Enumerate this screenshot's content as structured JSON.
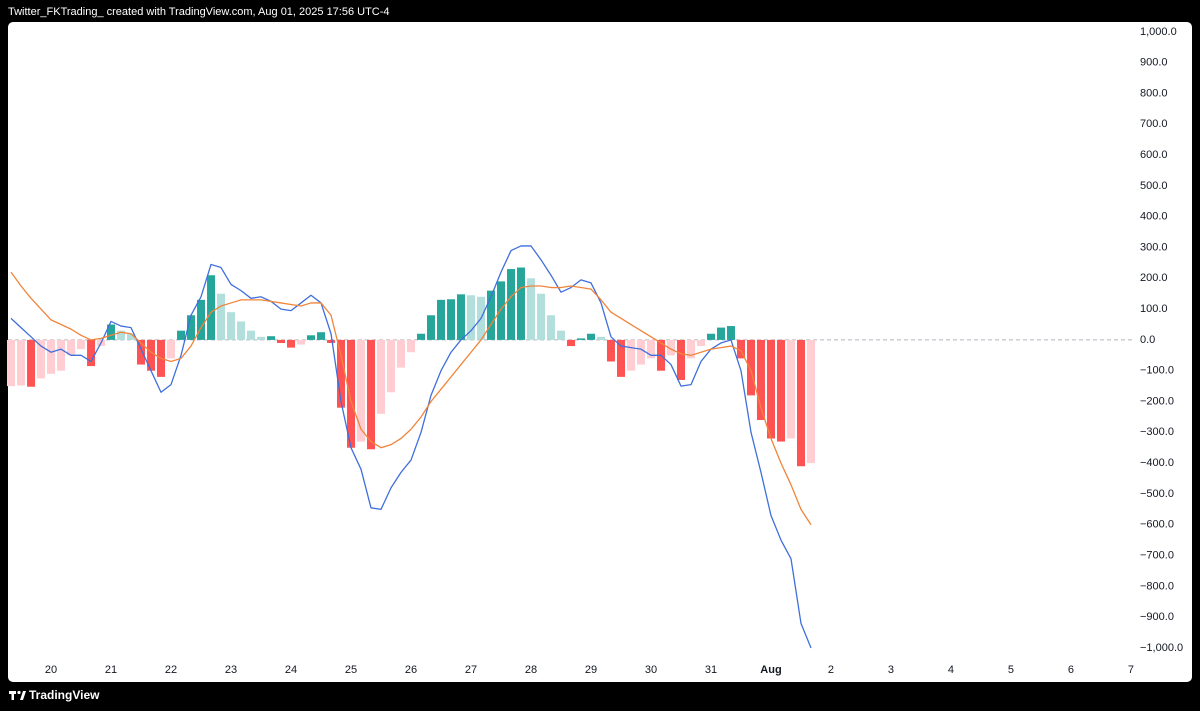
{
  "header_text": "Twitter_FKTrading_ created with TradingView.com, Aug 01, 2025 17:56 UTC-4",
  "brand": "TradingView",
  "chart_data": {
    "type": "bar",
    "xlim": [
      19.283,
      38.017
    ],
    "xticks": [
      20,
      21,
      22,
      23,
      24,
      25,
      26,
      27,
      28,
      29,
      30,
      31,
      {
        "value": 32,
        "label": "Aug"
      },
      {
        "value": 33,
        "label": "2"
      },
      {
        "value": 34,
        "label": "3"
      },
      {
        "value": 35,
        "label": "4"
      },
      {
        "value": 36,
        "label": "5"
      },
      {
        "value": 37,
        "label": "6"
      },
      {
        "value": 38,
        "label": "7"
      }
    ],
    "ylim": [
      -1104,
      1032
    ],
    "yticks": [
      {
        "value": 1000,
        "label": "1,000.0"
      },
      {
        "value": 900,
        "label": "900.0"
      },
      {
        "value": 800,
        "label": "800.0"
      },
      {
        "value": 700,
        "label": "700.0"
      },
      {
        "value": 600,
        "label": "600.0"
      },
      {
        "value": 500,
        "label": "500.0"
      },
      {
        "value": 400,
        "label": "400.0"
      },
      {
        "value": 300,
        "label": "300.0"
      },
      {
        "value": 200,
        "label": "200.0"
      },
      {
        "value": 100,
        "label": "100.0"
      },
      {
        "value": 0,
        "label": "0.0"
      },
      {
        "value": -100,
        "label": "−100.0"
      },
      {
        "value": -200,
        "label": "−200.0"
      },
      {
        "value": -300,
        "label": "−300.0"
      },
      {
        "value": -400,
        "label": "−400.0"
      },
      {
        "value": -500,
        "label": "−500.0"
      },
      {
        "value": -600,
        "label": "−600.0"
      },
      {
        "value": -700,
        "label": "−700.0"
      },
      {
        "value": -800,
        "label": "−800.0"
      },
      {
        "value": -900,
        "label": "−900.0"
      },
      {
        "value": -1000,
        "label": "−1,000.0"
      }
    ],
    "zero_line": true,
    "grid": false,
    "x": [
      19.333,
      19.5,
      19.667,
      19.833,
      20,
      20.167,
      20.333,
      20.5,
      20.667,
      20.833,
      21,
      21.167,
      21.333,
      21.5,
      21.667,
      21.833,
      22,
      22.167,
      22.333,
      22.5,
      22.667,
      22.833,
      23,
      23.167,
      23.333,
      23.5,
      23.667,
      23.833,
      24,
      24.167,
      24.333,
      24.5,
      24.667,
      24.833,
      25,
      25.167,
      25.333,
      25.5,
      25.667,
      25.833,
      26,
      26.167,
      26.333,
      26.5,
      26.667,
      26.833,
      27,
      27.167,
      27.333,
      27.5,
      27.667,
      27.833,
      28,
      28.167,
      28.333,
      28.5,
      28.667,
      28.833,
      29,
      29.167,
      29.333,
      29.5,
      29.667,
      29.833,
      30,
      30.167,
      30.333,
      30.5,
      30.667,
      30.833,
      31,
      31.167,
      31.333,
      31.5,
      31.667,
      31.833,
      32,
      32.167,
      32.333,
      32.5,
      32.667
    ],
    "series": [
      {
        "type": "bar",
        "colors": {
          "grow_above": "#26a69a",
          "fall_above": "#b2dfdb",
          "grow_below": "#ffcdd2",
          "fall_below": "#ff5252"
        },
        "values": [
          -150,
          -148,
          -152,
          -125,
          -110,
          -100,
          -50,
          -30,
          -85,
          -20,
          50,
          30,
          20,
          -80,
          -100,
          -120,
          -60,
          30,
          80,
          130,
          210,
          150,
          90,
          60,
          30,
          10,
          12,
          -10,
          -25,
          -15,
          15,
          25,
          -10,
          -220,
          -350,
          -330,
          -355,
          -240,
          -170,
          -90,
          -40,
          20,
          80,
          130,
          132,
          148,
          145,
          140,
          160,
          190,
          230,
          235,
          200,
          150,
          80,
          30,
          -20,
          5,
          20,
          10,
          -70,
          -120,
          -100,
          -80,
          -60,
          -100,
          -50,
          -130,
          -60,
          -20,
          20,
          40,
          45,
          -60,
          -180,
          -260,
          -320,
          -330,
          -320,
          -410,
          -400
        ]
      },
      {
        "type": "line",
        "color": "#3f6fdc",
        "values": [
          70,
          40,
          10,
          -20,
          -40,
          -30,
          -50,
          -50,
          -70,
          -10,
          60,
          45,
          40,
          -30,
          -100,
          -170,
          -145,
          -50,
          80,
          140,
          245,
          235,
          180,
          160,
          135,
          140,
          125,
          100,
          95,
          120,
          145,
          120,
          20,
          -200,
          -350,
          -420,
          -545,
          -550,
          -480,
          -430,
          -390,
          -300,
          -180,
          -100,
          -40,
          0,
          30,
          70,
          140,
          220,
          290,
          305,
          305,
          260,
          210,
          155,
          170,
          195,
          185,
          120,
          10,
          -20,
          -25,
          -30,
          -50,
          -50,
          -80,
          -150,
          -145,
          -70,
          -30,
          -10,
          0,
          -100,
          -300,
          -430,
          -570,
          -650,
          -710,
          -920,
          -1000
        ]
      },
      {
        "type": "line",
        "color": "#f0843a",
        "values": [
          220,
          175,
          135,
          100,
          65,
          50,
          35,
          15,
          0,
          5,
          15,
          25,
          20,
          -10,
          -40,
          -60,
          -70,
          -60,
          -20,
          40,
          90,
          110,
          120,
          130,
          130,
          130,
          125,
          120,
          115,
          110,
          120,
          120,
          80,
          -50,
          -200,
          -290,
          -330,
          -350,
          -340,
          -320,
          -290,
          -250,
          -200,
          -160,
          -120,
          -80,
          -40,
          0,
          50,
          100,
          140,
          170,
          175,
          175,
          170,
          170,
          175,
          170,
          165,
          130,
          90,
          70,
          50,
          30,
          10,
          -10,
          -30,
          -45,
          -50,
          -40,
          -30,
          -25,
          -20,
          -35,
          -100,
          -220,
          -320,
          -400,
          -470,
          -550,
          -600
        ]
      }
    ]
  }
}
